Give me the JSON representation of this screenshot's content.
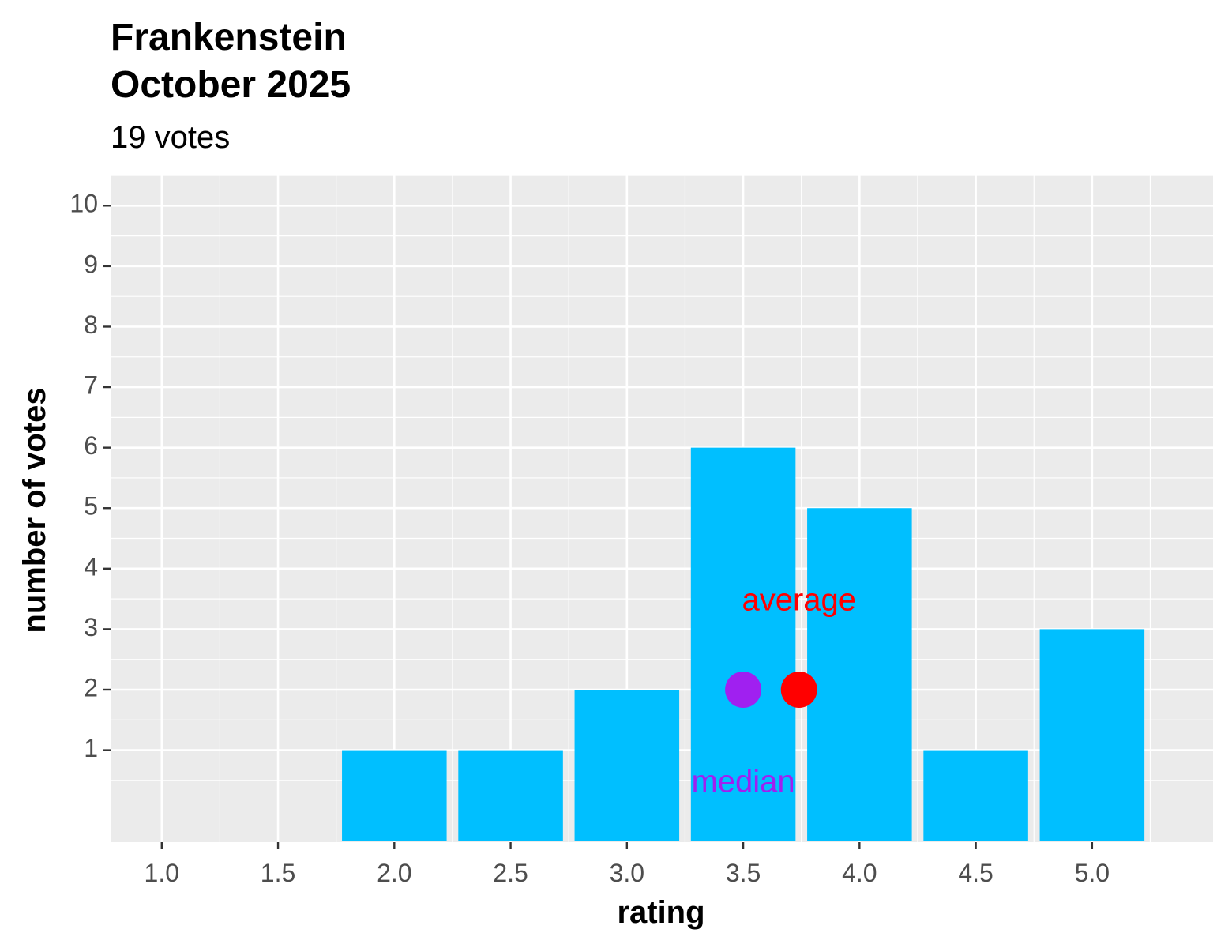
{
  "chart_data": {
    "type": "bar",
    "title_line1": "Frankenstein",
    "title_line2": "October 2025",
    "subtitle": "19 votes",
    "xlabel": "rating",
    "ylabel": "number of votes",
    "x_ticks": [
      "1.0",
      "1.5",
      "2.0",
      "2.5",
      "3.0",
      "3.5",
      "4.0",
      "4.5",
      "5.0"
    ],
    "y_ticks": [
      "1",
      "2",
      "3",
      "4",
      "5",
      "6",
      "7",
      "8",
      "9",
      "10"
    ],
    "xlim": [
      0.78,
      5.52
    ],
    "ylim": [
      -0.52,
      10.5
    ],
    "bar_width": 0.45,
    "bars": [
      {
        "x": 2.0,
        "value": 1
      },
      {
        "x": 2.5,
        "value": 1
      },
      {
        "x": 3.0,
        "value": 2
      },
      {
        "x": 3.5,
        "value": 6
      },
      {
        "x": 4.0,
        "value": 5
      },
      {
        "x": 4.5,
        "value": 1
      },
      {
        "x": 5.0,
        "value": 3
      }
    ],
    "bar_baseline": -0.5,
    "markers": [
      {
        "name": "median",
        "x": 3.5,
        "y": 2,
        "color": "#a020f0",
        "label": "median",
        "label_y": 0.45
      },
      {
        "name": "average",
        "x": 3.74,
        "y": 2,
        "color": "#ff0000",
        "label": "average",
        "label_y": 3.45
      }
    ],
    "colors": {
      "bar": "#00bfff",
      "panel": "#ebebeb",
      "grid": "#ffffff",
      "axis_text": "#4d4d4d"
    },
    "grid": true,
    "legend": "none"
  }
}
